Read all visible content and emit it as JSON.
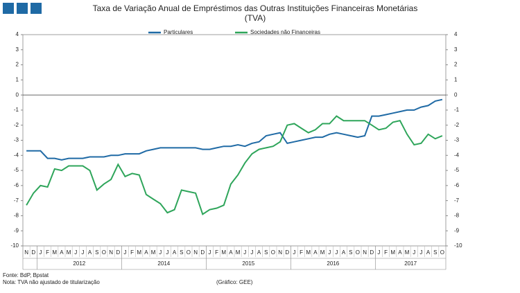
{
  "chart_data": {
    "type": "line",
    "title": "Taxa de Variação Anual de Empréstimos das Outras Instituições Financeiras Monetárias",
    "subtitle": "(TVA)",
    "categories": [
      "N",
      "D",
      "J",
      "F",
      "M",
      "A",
      "M",
      "J",
      "J",
      "A",
      "S",
      "O",
      "N",
      "D",
      "J",
      "F",
      "M",
      "A",
      "M",
      "J",
      "J",
      "A",
      "S",
      "O",
      "N",
      "D",
      "J",
      "F",
      "M",
      "A",
      "M",
      "J",
      "J",
      "A",
      "S",
      "O",
      "N",
      "D",
      "J",
      "F",
      "M",
      "A",
      "M",
      "J",
      "J",
      "A",
      "S",
      "O",
      "N",
      "D",
      "J",
      "F",
      "M",
      "A",
      "M",
      "J",
      "J",
      "A",
      "S",
      "O"
    ],
    "year_labels": [
      "2012",
      "2014",
      "2015",
      "2016",
      "2017"
    ],
    "series": [
      {
        "name": "Particulares",
        "color": "#1f6aa5",
        "values": [
          -3.7,
          -3.7,
          -3.7,
          -4.2,
          -4.2,
          -4.3,
          -4.2,
          -4.2,
          -4.2,
          -4.1,
          -4.1,
          -4.1,
          -4.0,
          -4.0,
          -3.9,
          -3.9,
          -3.9,
          -3.7,
          -3.6,
          -3.5,
          -3.5,
          -3.5,
          -3.5,
          -3.5,
          -3.5,
          -3.6,
          -3.6,
          -3.5,
          -3.4,
          -3.4,
          -3.3,
          -3.4,
          -3.2,
          -3.1,
          -2.7,
          -2.6,
          -2.5,
          -3.2,
          -3.1,
          -3.0,
          -2.9,
          -2.8,
          -2.8,
          -2.6,
          -2.5,
          -2.6,
          -2.7,
          -2.8,
          -2.7,
          -1.4,
          -1.4,
          -1.3,
          -1.2,
          -1.1,
          -1.0,
          -1.0,
          -0.8,
          -0.7,
          -0.4,
          -0.3
        ]
      },
      {
        "name": "Sociedades não Financeiras",
        "color": "#2ea55a",
        "values": [
          -7.3,
          -6.5,
          -6.0,
          -6.1,
          -4.9,
          -5.0,
          -4.7,
          -4.7,
          -4.7,
          -5.0,
          -6.3,
          -5.9,
          -5.6,
          -4.6,
          -5.4,
          -5.2,
          -5.3,
          -6.6,
          -6.9,
          -7.2,
          -7.8,
          -7.6,
          -6.3,
          -6.4,
          -6.5,
          -7.9,
          -7.6,
          -7.5,
          -7.3,
          -5.9,
          -5.3,
          -4.5,
          -3.9,
          -3.6,
          -3.5,
          -3.4,
          -3.1,
          -2.0,
          -1.9,
          -2.2,
          -2.5,
          -2.3,
          -1.9,
          -1.9,
          -1.4,
          -1.7,
          -1.7,
          -1.7,
          -1.7,
          -2.0,
          -2.3,
          -2.2,
          -1.8,
          -1.7,
          -2.6,
          -3.3,
          -3.2,
          -2.6,
          -2.9,
          -2.7
        ]
      }
    ],
    "ylim": [
      -10,
      4
    ],
    "yticks": [
      -10,
      -9,
      -8,
      -7,
      -6,
      -5,
      -4,
      -3,
      -2,
      -1,
      0,
      1,
      2,
      3,
      4
    ],
    "source": "Fonte: BdP, Bpstat",
    "note": "Nota: TVA não ajustado de titularização",
    "credit": "(Gráfico: GEE)"
  }
}
